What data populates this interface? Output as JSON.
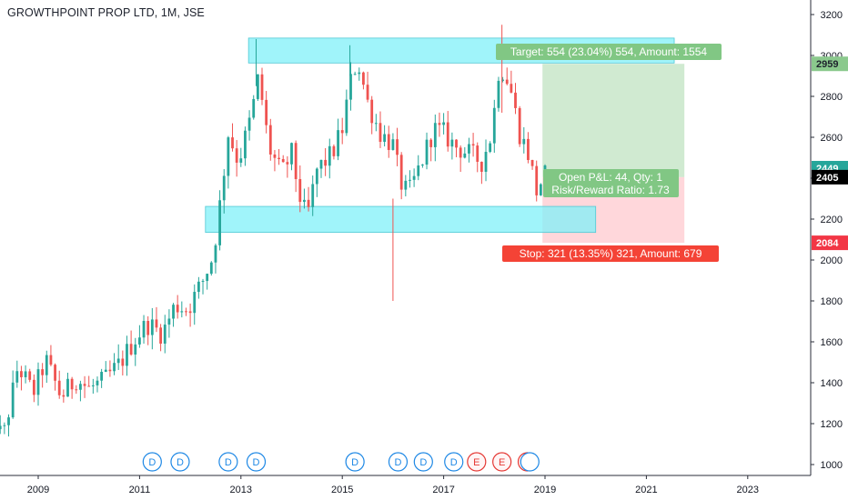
{
  "chart_data": {
    "type": "candlestick",
    "title": "GROWTHPOINT PROP LTD, 1M, JSE",
    "ylim": [
      960,
      3250
    ],
    "y_ticks": [
      1000,
      1200,
      1400,
      1600,
      1800,
      2000,
      2200,
      2400,
      2600,
      2800,
      3000,
      3200
    ],
    "x_ticks": [
      2009,
      2011,
      2013,
      2015,
      2017,
      2019,
      2021,
      2023
    ],
    "x_range": [
      2008.0,
      2024.6
    ],
    "grid": false,
    "colors": {
      "up": "#26a69a",
      "down": "#ef5350",
      "target_zone": "#c8e6c9",
      "stop_zone": "#ffcdd2",
      "channel": "#80f0f8",
      "label_green": "#81c784",
      "label_red": "#f44336"
    },
    "price_labels": [
      {
        "value": 2959,
        "text": "2959",
        "color": "#8bc98d",
        "text_color": "#1e222d"
      },
      {
        "value": 2449,
        "text": "2449",
        "color": "#26a69a",
        "text_color": "#ffffff"
      },
      {
        "value": 2405,
        "text": "2405",
        "color": "#000000",
        "text_color": "#ffffff"
      },
      {
        "value": 2084,
        "text": "2084",
        "color": "#f23645",
        "text_color": "#ffffff"
      }
    ],
    "position": {
      "entry_x": 2018.95,
      "end_x": 2021.75,
      "entry": 2405,
      "target": 2959,
      "stop": 2084,
      "current": 2449,
      "target_label": "Target: 554 (23.04%) 554, Amount: 1554",
      "stop_label": "Stop: 321 (13.35%) 321, Amount: 679",
      "pnl_label": "Open P&L: 44, Qty: 1",
      "rr_label": "Risk/Reward Ratio: 1.73"
    },
    "zones": [
      {
        "x0": 2013.15,
        "x1": 2021.55,
        "y0": 2963,
        "y1": 3085
      },
      {
        "x0": 2012.3,
        "x1": 2020.0,
        "y0": 2135,
        "y1": 2262
      }
    ],
    "events": [
      {
        "x": 2011.25,
        "label": "D",
        "kind": "dividend"
      },
      {
        "x": 2011.8,
        "label": "D",
        "kind": "dividend"
      },
      {
        "x": 2012.75,
        "label": "D",
        "kind": "dividend"
      },
      {
        "x": 2013.3,
        "label": "D",
        "kind": "dividend"
      },
      {
        "x": 2015.25,
        "label": "D",
        "kind": "dividend"
      },
      {
        "x": 2016.1,
        "label": "D",
        "kind": "dividend"
      },
      {
        "x": 2016.6,
        "label": "D",
        "kind": "dividend"
      },
      {
        "x": 2017.2,
        "label": "D",
        "kind": "dividend"
      },
      {
        "x": 2017.65,
        "label": "E",
        "kind": "earnings"
      },
      {
        "x": 2018.15,
        "label": "E",
        "kind": "earnings"
      },
      {
        "x": 2018.65,
        "label": "E",
        "kind": "earnings"
      },
      {
        "x": 2018.7,
        "label": "",
        "kind": "dividend"
      }
    ],
    "anchors": [
      [
        2008.0,
        1320
      ],
      [
        2008.3,
        1120
      ],
      [
        2008.6,
        1480
      ],
      [
        2008.9,
        1350
      ],
      [
        2009.15,
        1510
      ],
      [
        2009.45,
        1330
      ],
      [
        2009.75,
        1420
      ],
      [
        2010.0,
        1370
      ],
      [
        2010.3,
        1410
      ],
      [
        2010.6,
        1490
      ],
      [
        2010.9,
        1610
      ],
      [
        2011.15,
        1690
      ],
      [
        2011.45,
        1640
      ],
      [
        2011.7,
        1780
      ],
      [
        2011.95,
        1760
      ],
      [
        2012.25,
        1900
      ],
      [
        2012.45,
        2020
      ],
      [
        2012.6,
        2300
      ],
      [
        2012.75,
        2620
      ],
      [
        2012.95,
        2480
      ],
      [
        2013.2,
        2700
      ],
      [
        2013.35,
        2900
      ],
      [
        2013.55,
        2550
      ],
      [
        2013.8,
        2420
      ],
      [
        2014.0,
        2520
      ],
      [
        2014.15,
        2320
      ],
      [
        2014.3,
        2200
      ],
      [
        2014.5,
        2440
      ],
      [
        2014.8,
        2520
      ],
      [
        2015.0,
        2640
      ],
      [
        2015.15,
        2860
      ],
      [
        2015.3,
        2980
      ],
      [
        2015.5,
        2770
      ],
      [
        2015.75,
        2620
      ],
      [
        2016.0,
        2560
      ],
      [
        2016.15,
        2380
      ],
      [
        2016.3,
        2320
      ],
      [
        2016.55,
        2470
      ],
      [
        2016.8,
        2640
      ],
      [
        2017.0,
        2620
      ],
      [
        2017.2,
        2560
      ],
      [
        2017.5,
        2520
      ],
      [
        2017.75,
        2480
      ],
      [
        2017.95,
        2620
      ],
      [
        2018.1,
        2960
      ],
      [
        2018.3,
        2860
      ],
      [
        2018.5,
        2620
      ],
      [
        2018.7,
        2500
      ],
      [
        2018.82,
        2330
      ],
      [
        2018.97,
        2405
      ],
      [
        2019.05,
        2440
      ]
    ]
  }
}
